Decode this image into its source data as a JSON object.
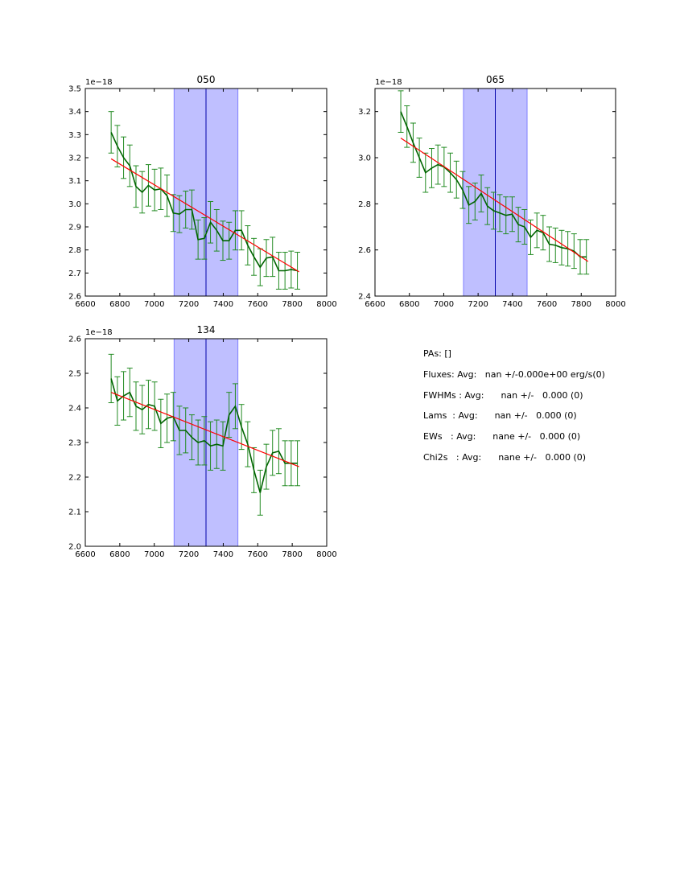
{
  "chart_data": [
    {
      "type": "line",
      "title": "050",
      "xlim": [
        6600,
        8000
      ],
      "ylim": [
        2.6,
        3.5
      ],
      "y_offset_label": "1e−18",
      "xticks": [
        "6600",
        "6800",
        "7000",
        "7200",
        "7400",
        "7600",
        "7800",
        "8000"
      ],
      "yticks": [
        "2.6",
        "2.7",
        "2.8",
        "2.9",
        "3.0",
        "3.1",
        "3.2",
        "3.3",
        "3.4",
        "3.5"
      ],
      "shaded_band": [
        7115,
        7485
      ],
      "center_line": 7300,
      "fit_line": {
        "x": [
          6750,
          7840
        ],
        "y": [
          3.195,
          2.705
        ]
      },
      "series": [
        {
          "x": [
            6750,
            6786,
            6822,
            6858,
            6894,
            6930,
            6966,
            7002,
            7038,
            7074,
            7110,
            7146,
            7182,
            7218,
            7254,
            7290,
            7326,
            7362,
            7398,
            7434,
            7470,
            7506,
            7542,
            7578,
            7614,
            7650,
            7686,
            7722,
            7758,
            7794,
            7830
          ],
          "y": [
            3.31,
            3.25,
            3.2,
            3.165,
            3.075,
            3.05,
            3.08,
            3.06,
            3.065,
            3.035,
            2.96,
            2.955,
            2.975,
            2.975,
            2.845,
            2.85,
            2.92,
            2.885,
            2.84,
            2.84,
            2.885,
            2.885,
            2.82,
            2.77,
            2.725,
            2.765,
            2.77,
            2.71,
            2.71,
            2.715,
            2.71
          ],
          "err": [
            0.09,
            0.09,
            0.09,
            0.09,
            0.09,
            0.09,
            0.09,
            0.09,
            0.09,
            0.09,
            0.08,
            0.08,
            0.08,
            0.085,
            0.085,
            0.09,
            0.09,
            0.09,
            0.085,
            0.08,
            0.085,
            0.085,
            0.085,
            0.08,
            0.08,
            0.08,
            0.085,
            0.08,
            0.08,
            0.08,
            0.08
          ]
        }
      ]
    },
    {
      "type": "line",
      "title": "065",
      "xlim": [
        6600,
        8000
      ],
      "ylim": [
        2.4,
        3.3
      ],
      "y_offset_label": "1e−18",
      "xticks": [
        "6600",
        "6800",
        "7000",
        "7200",
        "7400",
        "7600",
        "7800",
        "8000"
      ],
      "yticks": [
        "2.4",
        "2.6",
        "2.8",
        "3.0",
        "3.2"
      ],
      "shaded_band": [
        7115,
        7485
      ],
      "center_line": 7300,
      "fit_line": {
        "x": [
          6750,
          7840
        ],
        "y": [
          3.085,
          2.55
        ]
      },
      "series": [
        {
          "x": [
            6750,
            6786,
            6822,
            6858,
            6894,
            6930,
            6966,
            7002,
            7038,
            7074,
            7110,
            7146,
            7182,
            7218,
            7254,
            7290,
            7326,
            7362,
            7398,
            7434,
            7470,
            7506,
            7542,
            7578,
            7614,
            7650,
            7686,
            7722,
            7758,
            7794,
            7830
          ],
          "y": [
            3.2,
            3.135,
            3.065,
            3.0,
            2.935,
            2.955,
            2.97,
            2.96,
            2.935,
            2.905,
            2.86,
            2.795,
            2.81,
            2.845,
            2.79,
            2.77,
            2.76,
            2.75,
            2.755,
            2.71,
            2.7,
            2.655,
            2.685,
            2.675,
            2.625,
            2.62,
            2.61,
            2.605,
            2.595,
            2.57,
            2.57
          ],
          "err": [
            0.09,
            0.09,
            0.085,
            0.085,
            0.085,
            0.085,
            0.085,
            0.085,
            0.085,
            0.08,
            0.08,
            0.08,
            0.08,
            0.08,
            0.08,
            0.08,
            0.08,
            0.08,
            0.075,
            0.075,
            0.075,
            0.075,
            0.075,
            0.075,
            0.075,
            0.075,
            0.075,
            0.075,
            0.075,
            0.075,
            0.075
          ]
        }
      ]
    },
    {
      "type": "line",
      "title": "134",
      "xlim": [
        6600,
        8000
      ],
      "ylim": [
        2.0,
        2.6
      ],
      "y_offset_label": "1e−18",
      "xticks": [
        "6600",
        "6800",
        "7000",
        "7200",
        "7400",
        "7600",
        "7800",
        "8000"
      ],
      "yticks": [
        "2.0",
        "2.1",
        "2.2",
        "2.3",
        "2.4",
        "2.5",
        "2.6"
      ],
      "shaded_band": [
        7115,
        7485
      ],
      "center_line": 7300,
      "fit_line": {
        "x": [
          6750,
          7840
        ],
        "y": [
          2.445,
          2.23
        ]
      },
      "series": [
        {
          "x": [
            6750,
            6786,
            6822,
            6858,
            6894,
            6930,
            6966,
            7002,
            7038,
            7074,
            7110,
            7146,
            7182,
            7218,
            7254,
            7290,
            7326,
            7362,
            7398,
            7434,
            7470,
            7506,
            7542,
            7578,
            7614,
            7650,
            7686,
            7722,
            7758,
            7794,
            7830
          ],
          "y": [
            2.485,
            2.42,
            2.435,
            2.445,
            2.405,
            2.395,
            2.41,
            2.405,
            2.355,
            2.37,
            2.375,
            2.335,
            2.335,
            2.315,
            2.3,
            2.305,
            2.29,
            2.295,
            2.29,
            2.38,
            2.405,
            2.345,
            2.295,
            2.22,
            2.155,
            2.23,
            2.27,
            2.275,
            2.24,
            2.24,
            2.24
          ],
          "err": [
            0.07,
            0.07,
            0.07,
            0.07,
            0.07,
            0.07,
            0.07,
            0.07,
            0.07,
            0.07,
            0.07,
            0.07,
            0.065,
            0.065,
            0.065,
            0.07,
            0.07,
            0.07,
            0.07,
            0.065,
            0.065,
            0.065,
            0.065,
            0.065,
            0.065,
            0.065,
            0.065,
            0.065,
            0.065,
            0.065,
            0.065
          ]
        }
      ]
    }
  ],
  "stats": {
    "pas": "PAs: []",
    "fluxes": "Fluxes: Avg:   nan +/-0.000e+00 erg/s(0)",
    "fwhms": "FWHMs : Avg:      nan +/-   0.000 (0)",
    "lams": "Lams  : Avg:      nan +/-   0.000 (0)",
    "ews": "EWs   : Avg:      nane +/-   0.000 (0)",
    "chi2s": "Chi2s   : Avg:      nane +/-   0.000 (0)"
  },
  "colors": {
    "data_line": "#006400",
    "error_bar": "#228b22",
    "fit_line": "#ff0000",
    "band_fill": "#bfbfff",
    "band_edge": "#8080ff",
    "center_line": "#0000aa"
  }
}
